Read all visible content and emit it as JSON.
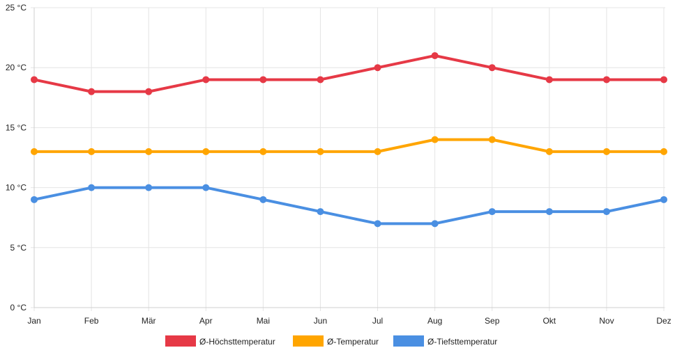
{
  "chart_data": {
    "type": "line",
    "categories": [
      "Jan",
      "Feb",
      "Mär",
      "Apr",
      "Mai",
      "Jun",
      "Jul",
      "Aug",
      "Sep",
      "Okt",
      "Nov",
      "Dez"
    ],
    "y_ticks": [
      "0 °C",
      "5 °C",
      "10 °C",
      "15 °C",
      "20 °C",
      "25 °C"
    ],
    "y_tick_values": [
      0,
      5,
      10,
      15,
      20,
      25
    ],
    "ylim": [
      0,
      25
    ],
    "grid": true,
    "legend_position": "bottom",
    "series": [
      {
        "name": "Ø-Höchsttemperatur",
        "color": "#e63946",
        "values": [
          19,
          18,
          18,
          19,
          19,
          19,
          20,
          21,
          20,
          19,
          19,
          19
        ]
      },
      {
        "name": "Ø-Temperatur",
        "color": "#ffa500",
        "values": [
          13,
          13,
          13,
          13,
          13,
          13,
          13,
          14,
          14,
          13,
          13,
          13
        ]
      },
      {
        "name": "Ø-Tiefsttemperatur",
        "color": "#4a8fe2",
        "values": [
          9,
          10,
          10,
          10,
          9,
          8,
          7,
          7,
          8,
          8,
          8,
          9
        ]
      }
    ]
  }
}
